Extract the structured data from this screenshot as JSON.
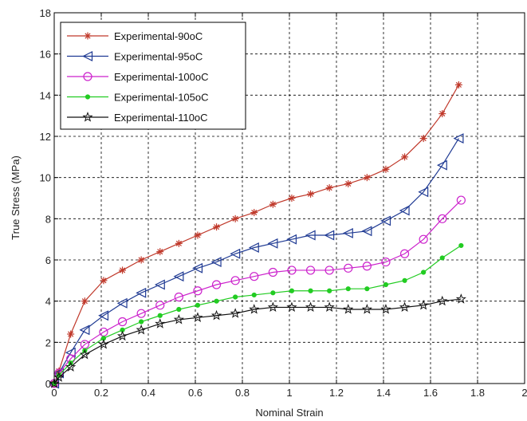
{
  "chart_data": {
    "type": "line",
    "title": "",
    "xlabel": "Nominal Strain",
    "ylabel": "True Stress (MPa)",
    "xlim": [
      0,
      2
    ],
    "ylim": [
      0,
      18
    ],
    "x_ticks": [
      "0",
      "0.2",
      "0.4",
      "0.6",
      "0.8",
      "1",
      "1.2",
      "1.4",
      "1.6",
      "1.8",
      "2"
    ],
    "y_ticks": [
      "0",
      "2",
      "4",
      "6",
      "8",
      "10",
      "12",
      "14",
      "16",
      "18"
    ],
    "grid": true,
    "legend_position": "top-left",
    "series": [
      {
        "name": "Experimental-90oC",
        "color": "#c0392b",
        "marker": "asterisk",
        "points": [
          [
            0.0,
            0.0
          ],
          [
            0.02,
            0.6
          ],
          [
            0.07,
            2.4
          ],
          [
            0.13,
            4.0
          ],
          [
            0.21,
            5.0
          ],
          [
            0.29,
            5.5
          ],
          [
            0.37,
            6.0
          ],
          [
            0.45,
            6.4
          ],
          [
            0.53,
            6.8
          ],
          [
            0.61,
            7.2
          ],
          [
            0.69,
            7.6
          ],
          [
            0.77,
            8.0
          ],
          [
            0.85,
            8.3
          ],
          [
            0.93,
            8.7
          ],
          [
            1.01,
            9.0
          ],
          [
            1.09,
            9.2
          ],
          [
            1.17,
            9.5
          ],
          [
            1.25,
            9.7
          ],
          [
            1.33,
            10.0
          ],
          [
            1.41,
            10.4
          ],
          [
            1.49,
            11.0
          ],
          [
            1.57,
            11.9
          ],
          [
            1.65,
            13.1
          ],
          [
            1.72,
            14.5
          ]
        ]
      },
      {
        "name": "Experimental-95oC",
        "color": "#1f3a93",
        "marker": "triangle-left",
        "points": [
          [
            0.0,
            0.0
          ],
          [
            0.02,
            0.5
          ],
          [
            0.07,
            1.5
          ],
          [
            0.13,
            2.6
          ],
          [
            0.21,
            3.3
          ],
          [
            0.29,
            3.9
          ],
          [
            0.37,
            4.4
          ],
          [
            0.45,
            4.8
          ],
          [
            0.53,
            5.2
          ],
          [
            0.61,
            5.6
          ],
          [
            0.69,
            5.9
          ],
          [
            0.77,
            6.3
          ],
          [
            0.85,
            6.6
          ],
          [
            0.93,
            6.8
          ],
          [
            1.01,
            7.0
          ],
          [
            1.09,
            7.2
          ],
          [
            1.17,
            7.2
          ],
          [
            1.25,
            7.3
          ],
          [
            1.33,
            7.4
          ],
          [
            1.41,
            7.9
          ],
          [
            1.49,
            8.4
          ],
          [
            1.57,
            9.3
          ],
          [
            1.65,
            10.6
          ],
          [
            1.72,
            11.9
          ]
        ]
      },
      {
        "name": "Experimental-100oC",
        "color": "#cc22cc",
        "marker": "circle",
        "points": [
          [
            0.0,
            0.0
          ],
          [
            0.02,
            0.5
          ],
          [
            0.07,
            1.2
          ],
          [
            0.13,
            1.9
          ],
          [
            0.21,
            2.5
          ],
          [
            0.29,
            3.0
          ],
          [
            0.37,
            3.4
          ],
          [
            0.45,
            3.8
          ],
          [
            0.53,
            4.2
          ],
          [
            0.61,
            4.5
          ],
          [
            0.69,
            4.8
          ],
          [
            0.77,
            5.0
          ],
          [
            0.85,
            5.2
          ],
          [
            0.93,
            5.4
          ],
          [
            1.01,
            5.5
          ],
          [
            1.09,
            5.5
          ],
          [
            1.17,
            5.5
          ],
          [
            1.25,
            5.6
          ],
          [
            1.33,
            5.7
          ],
          [
            1.41,
            5.9
          ],
          [
            1.49,
            6.3
          ],
          [
            1.57,
            7.0
          ],
          [
            1.65,
            8.0
          ],
          [
            1.73,
            8.9
          ]
        ]
      },
      {
        "name": "Experimental-105oC",
        "color": "#22cc22",
        "marker": "dot",
        "points": [
          [
            0.0,
            0.0
          ],
          [
            0.02,
            0.4
          ],
          [
            0.07,
            1.0
          ],
          [
            0.13,
            1.6
          ],
          [
            0.21,
            2.2
          ],
          [
            0.29,
            2.6
          ],
          [
            0.37,
            3.0
          ],
          [
            0.45,
            3.3
          ],
          [
            0.53,
            3.6
          ],
          [
            0.61,
            3.8
          ],
          [
            0.69,
            4.0
          ],
          [
            0.77,
            4.2
          ],
          [
            0.85,
            4.3
          ],
          [
            0.93,
            4.4
          ],
          [
            1.01,
            4.5
          ],
          [
            1.09,
            4.5
          ],
          [
            1.17,
            4.5
          ],
          [
            1.25,
            4.6
          ],
          [
            1.33,
            4.6
          ],
          [
            1.41,
            4.8
          ],
          [
            1.49,
            5.0
          ],
          [
            1.57,
            5.4
          ],
          [
            1.65,
            6.1
          ],
          [
            1.73,
            6.7
          ]
        ]
      },
      {
        "name": "Experimental-110oC",
        "color": "#111111",
        "marker": "pentagram",
        "points": [
          [
            0.0,
            0.0
          ],
          [
            0.02,
            0.3
          ],
          [
            0.07,
            0.8
          ],
          [
            0.13,
            1.4
          ],
          [
            0.21,
            1.9
          ],
          [
            0.29,
            2.3
          ],
          [
            0.37,
            2.6
          ],
          [
            0.45,
            2.9
          ],
          [
            0.53,
            3.1
          ],
          [
            0.61,
            3.2
          ],
          [
            0.69,
            3.3
          ],
          [
            0.77,
            3.4
          ],
          [
            0.85,
            3.6
          ],
          [
            0.93,
            3.7
          ],
          [
            1.01,
            3.7
          ],
          [
            1.09,
            3.7
          ],
          [
            1.17,
            3.7
          ],
          [
            1.25,
            3.6
          ],
          [
            1.33,
            3.6
          ],
          [
            1.41,
            3.6
          ],
          [
            1.49,
            3.7
          ],
          [
            1.57,
            3.8
          ],
          [
            1.65,
            4.0
          ],
          [
            1.73,
            4.1
          ]
        ]
      }
    ]
  }
}
